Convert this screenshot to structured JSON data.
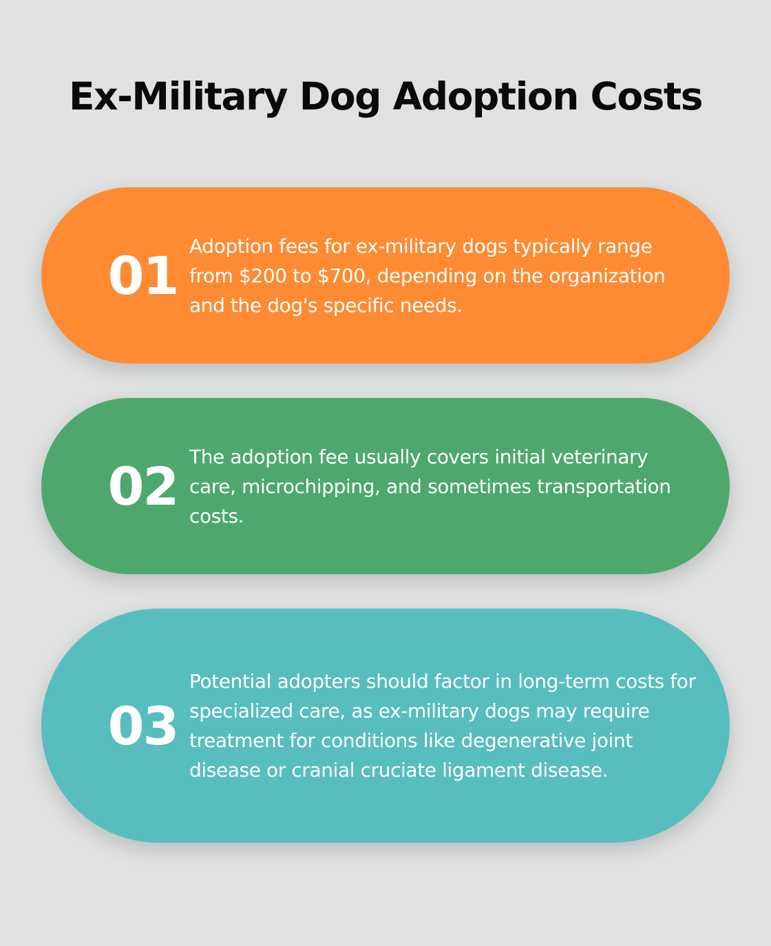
{
  "title": "Ex-Military Dog Adoption Costs",
  "colors": {
    "background": "#dfe2e1",
    "card_1": "#fe8b33",
    "card_2": "#4ea86d",
    "card_3": "#58bdbf"
  },
  "items": [
    {
      "number": "01",
      "text": "Adoption fees for ex-military dogs typically range from $200 to $700, depending on the organization and the dog's specific needs."
    },
    {
      "number": "02",
      "text": "The adoption fee usually covers initial veterinary care, microchipping, and sometimes transportation costs."
    },
    {
      "number": "03",
      "text": "Potential adopters should factor in long-term costs for specialized care, as ex-military dogs may require treatment for conditions like degenerative joint disease or cranial cruciate ligament disease."
    }
  ]
}
